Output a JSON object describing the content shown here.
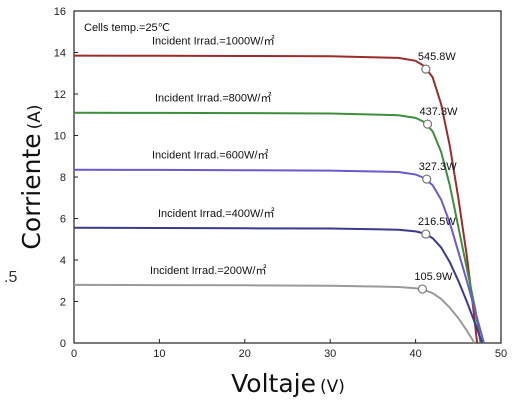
{
  "chart_data": {
    "type": "line",
    "xlabel": "Voltaje",
    "xunit": "(V)",
    "ylabel": "Corriente",
    "yunit": "(A)",
    "xlim": [
      0,
      50
    ],
    "ylim": [
      0,
      16
    ],
    "xticks": [
      "0",
      "10",
      "20",
      "30",
      "40",
      "50"
    ],
    "yticks": [
      "0",
      "2",
      "4",
      "6",
      "8",
      "10",
      "12",
      "14",
      "16"
    ],
    "grid": false,
    "annotation": "Cells temp.=25℃",
    "side_text": ".5",
    "series": [
      {
        "name": "Incident Irrad.=1000W/㎡",
        "color": "#9b2c2c",
        "mpp_label": "545.8W",
        "mpp": [
          41.2,
          13.2
        ],
        "points": [
          [
            0,
            13.85
          ],
          [
            10,
            13.84
          ],
          [
            20,
            13.83
          ],
          [
            30,
            13.82
          ],
          [
            38,
            13.74
          ],
          [
            40,
            13.6
          ],
          [
            41,
            13.35
          ],
          [
            42,
            12.8
          ],
          [
            43,
            11.5
          ],
          [
            44,
            9.5
          ],
          [
            45,
            7.0
          ],
          [
            46,
            4.2
          ],
          [
            46.8,
            1.5
          ],
          [
            47.2,
            0
          ]
        ]
      },
      {
        "name": "Incident Irrad.=800W/㎡",
        "color": "#3e8e3e",
        "mpp_label": "437.3W",
        "mpp": [
          41.4,
          10.55
        ],
        "points": [
          [
            0,
            11.1
          ],
          [
            10,
            11.09
          ],
          [
            20,
            11.08
          ],
          [
            30,
            11.06
          ],
          [
            38,
            10.98
          ],
          [
            40,
            10.85
          ],
          [
            41,
            10.65
          ],
          [
            42,
            10.2
          ],
          [
            43,
            9.2
          ],
          [
            44,
            7.6
          ],
          [
            45,
            5.6
          ],
          [
            46,
            3.6
          ],
          [
            47,
            1.6
          ],
          [
            47.6,
            0
          ]
        ]
      },
      {
        "name": "Incident Irrad.=600W/㎡",
        "color": "#6a5acd",
        "mpp_label": "327.3W",
        "mpp": [
          41.3,
          7.9
        ],
        "points": [
          [
            0,
            8.35
          ],
          [
            10,
            8.34
          ],
          [
            20,
            8.33
          ],
          [
            30,
            8.31
          ],
          [
            38,
            8.24
          ],
          [
            40,
            8.12
          ],
          [
            41,
            7.95
          ],
          [
            42,
            7.6
          ],
          [
            43,
            6.9
          ],
          [
            44,
            5.8
          ],
          [
            45,
            4.4
          ],
          [
            46,
            3.0
          ],
          [
            47,
            1.5
          ],
          [
            48,
            0
          ]
        ]
      },
      {
        "name": "Incident Irrad.=400W/㎡",
        "color": "#3a3a8c",
        "mpp_label": "216.5W",
        "mpp": [
          41.2,
          5.25
        ],
        "points": [
          [
            0,
            5.55
          ],
          [
            10,
            5.54
          ],
          [
            20,
            5.53
          ],
          [
            30,
            5.52
          ],
          [
            38,
            5.46
          ],
          [
            40,
            5.38
          ],
          [
            41,
            5.28
          ],
          [
            42,
            5.05
          ],
          [
            43,
            4.6
          ],
          [
            44,
            3.9
          ],
          [
            45,
            3.0
          ],
          [
            46,
            2.0
          ],
          [
            47,
            0.9
          ],
          [
            47.8,
            0
          ]
        ]
      },
      {
        "name": "Incident Irrad.=200W/㎡",
        "color": "#9a9a9a",
        "mpp_label": "105.9W",
        "mpp": [
          40.8,
          2.6
        ],
        "points": [
          [
            0,
            2.8
          ],
          [
            10,
            2.79
          ],
          [
            20,
            2.78
          ],
          [
            30,
            2.76
          ],
          [
            38,
            2.7
          ],
          [
            40,
            2.64
          ],
          [
            41,
            2.56
          ],
          [
            42,
            2.4
          ],
          [
            43,
            2.12
          ],
          [
            44,
            1.7
          ],
          [
            45,
            1.2
          ],
          [
            46,
            0.6
          ],
          [
            46.9,
            0
          ]
        ]
      }
    ]
  }
}
